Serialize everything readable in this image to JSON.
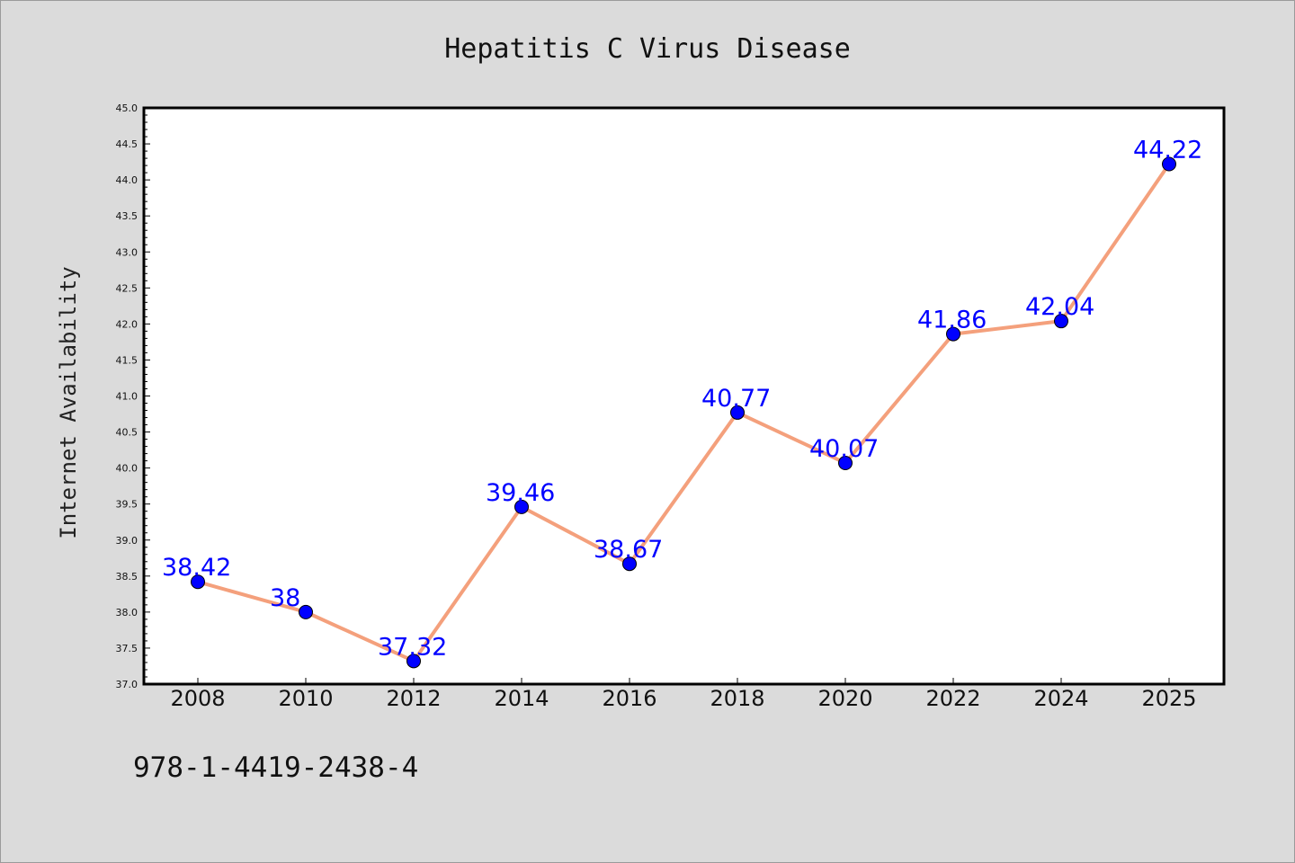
{
  "isbn_text": "978-1-4419-2438-4",
  "colors": {
    "background": "#dbdbdb",
    "plot_area": "#ffffff",
    "line": "#f4a07c",
    "marker": "#0000ff",
    "label": "#0000ff"
  },
  "chart_data": {
    "type": "line",
    "title": "Hepatitis C Virus Disease",
    "xlabel": "",
    "ylabel": "Internet Availability",
    "categories": [
      "2008",
      "2010",
      "2012",
      "2014",
      "2016",
      "2018",
      "2020",
      "2022",
      "2024",
      "2025"
    ],
    "series": [
      {
        "values": [
          38.42,
          38,
          37.32,
          39.46,
          38.67,
          40.77,
          40.07,
          41.86,
          42.04,
          44.22
        ],
        "labels": [
          "38.42",
          "38",
          "37.32",
          "39.46",
          "38.67",
          "40.77",
          "40.07",
          "41.86",
          "42.04",
          "44.22"
        ]
      }
    ],
    "ylim": [
      37.0,
      45.0
    ],
    "yticks": [
      "37.0",
      "37.5",
      "38.0",
      "38.5",
      "39.0",
      "39.5",
      "40.0",
      "40.5",
      "41.0",
      "41.5",
      "42.0",
      "42.5",
      "43.0",
      "43.5",
      "44.0",
      "44.5",
      "45.0"
    ],
    "grid": false,
    "legend": "none"
  }
}
